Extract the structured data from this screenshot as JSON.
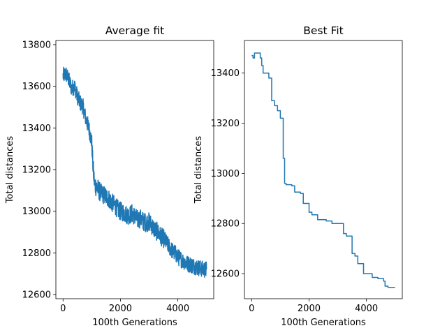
{
  "chart_data": [
    {
      "type": "line",
      "title": "Average fit",
      "xlabel": "100th Generations",
      "ylabel": "Total distances",
      "xlim": [
        -250,
        5250
      ],
      "ylim": [
        12580,
        13820
      ],
      "xticks": [
        0,
        2000,
        4000
      ],
      "yticks": [
        12600,
        12800,
        13000,
        13200,
        13400,
        13600,
        13800
      ],
      "grid": false,
      "color": "#1f77b4",
      "series": [
        {
          "x": [
            0,
            100,
            200,
            300,
            400,
            500,
            600,
            700,
            800,
            900,
            1000,
            1050,
            1100,
            1200,
            1300,
            1400,
            1500,
            1600,
            1700,
            1800,
            1900,
            2000,
            2100,
            2200,
            2300,
            2400,
            2500,
            2600,
            2700,
            2800,
            2900,
            3000,
            3100,
            3200,
            3300,
            3400,
            3500,
            3600,
            3700,
            3800,
            3900,
            4000,
            4100,
            4200,
            4300,
            4400,
            4500,
            4600,
            4700,
            4800,
            4900,
            5000
          ],
          "y": [
            13650,
            13660,
            13630,
            13590,
            13600,
            13550,
            13520,
            13500,
            13440,
            13400,
            13330,
            13200,
            13130,
            13110,
            13090,
            13080,
            13070,
            13060,
            13040,
            13030,
            13010,
            13000,
            12995,
            12985,
            12980,
            12990,
            12975,
            12960,
            12965,
            12950,
            12945,
            12950,
            12930,
            12910,
            12900,
            12880,
            12870,
            12850,
            12830,
            12810,
            12800,
            12780,
            12770,
            12760,
            12750,
            12745,
            12740,
            12735,
            12730,
            12725,
            12720,
            12720
          ],
          "noise": [
            40,
            40,
            40,
            40,
            40,
            40,
            40,
            40,
            40,
            40,
            40,
            50,
            50,
            50,
            45,
            45,
            45,
            45,
            45,
            45,
            45,
            45,
            45,
            45,
            45,
            45,
            45,
            45,
            45,
            45,
            45,
            45,
            45,
            45,
            45,
            45,
            45,
            40,
            40,
            40,
            40,
            40,
            40,
            40,
            40,
            40,
            40,
            40,
            40,
            40,
            40,
            40
          ]
        }
      ]
    },
    {
      "type": "line",
      "title": "Best Fit",
      "xlabel": "100th Generations",
      "ylabel": "Total distances",
      "xlim": [
        -250,
        5250
      ],
      "ylim": [
        12500,
        13530
      ],
      "xticks": [
        0,
        2000,
        4000
      ],
      "yticks": [
        12600,
        12800,
        13000,
        13200,
        13400
      ],
      "grid": false,
      "color": "#1f77b4",
      "series": [
        {
          "x": [
            0,
            50,
            100,
            300,
            350,
            400,
            600,
            700,
            800,
            900,
            1000,
            1100,
            1150,
            1200,
            1400,
            1500,
            1700,
            1800,
            2000,
            2100,
            2300,
            2600,
            2800,
            3200,
            3300,
            3500,
            3600,
            3700,
            3900,
            4200,
            4400,
            4600,
            4650,
            4750,
            5000
          ],
          "y": [
            13470,
            13460,
            13480,
            13460,
            13430,
            13400,
            13380,
            13290,
            13270,
            13250,
            13220,
            13060,
            12960,
            12955,
            12950,
            12925,
            12920,
            12880,
            12845,
            12835,
            12815,
            12810,
            12800,
            12760,
            12750,
            12680,
            12670,
            12640,
            12600,
            12585,
            12580,
            12570,
            12550,
            12545,
            12545
          ]
        }
      ]
    }
  ]
}
